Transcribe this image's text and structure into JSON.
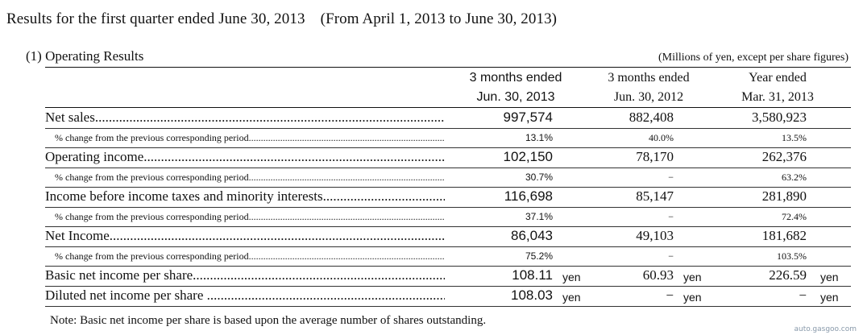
{
  "title": "Results for the first quarter ended June 30, 2013　(From April 1, 2013 to June 30, 2013)",
  "section_title": "(1)  Operating Results",
  "units_note": "(Millions of yen, except per share figures)",
  "columns": [
    {
      "line1": "3 months ended",
      "line2": "Jun. 30, 2013"
    },
    {
      "line1": "3 months ended",
      "line2": "Jun. 30, 2012"
    },
    {
      "line1": "Year ended",
      "line2": "Mar. 31, 2013"
    }
  ],
  "rows": [
    {
      "label": "Net sales",
      "kind": "main",
      "values": [
        "997,574",
        "882,408",
        "3,580,923"
      ],
      "units": [
        "",
        "",
        ""
      ]
    },
    {
      "label": "% change from the previous corresponding period",
      "kind": "sub",
      "values": [
        "13.1%",
        "40.0%",
        "13.5%"
      ],
      "units": [
        "",
        "",
        ""
      ]
    },
    {
      "label": "Operating income",
      "kind": "main",
      "values": [
        "102,150",
        "78,170",
        "262,376"
      ],
      "units": [
        "",
        "",
        ""
      ]
    },
    {
      "label": "% change from the previous corresponding period",
      "kind": "sub",
      "values": [
        "30.7%",
        "−",
        "63.2%"
      ],
      "units": [
        "",
        "",
        ""
      ]
    },
    {
      "label": "Income before income taxes and minority interests",
      "kind": "main",
      "values": [
        "116,698",
        "85,147",
        "281,890"
      ],
      "units": [
        "",
        "",
        ""
      ]
    },
    {
      "label": "% change from the previous corresponding period",
      "kind": "sub",
      "values": [
        "37.1%",
        "−",
        "72.4%"
      ],
      "units": [
        "",
        "",
        ""
      ]
    },
    {
      "label": "Net Income",
      "kind": "main",
      "values": [
        "86,043",
        "49,103",
        "181,682"
      ],
      "units": [
        "",
        "",
        ""
      ]
    },
    {
      "label": "% change from the previous corresponding period",
      "kind": "sub",
      "values": [
        "75.2%",
        "−",
        "103.5%"
      ],
      "units": [
        "",
        "",
        ""
      ]
    },
    {
      "label": "Basic net income per share",
      "kind": "main",
      "values": [
        "108.11",
        "60.93",
        "226.59"
      ],
      "units": [
        "yen",
        "yen",
        "yen"
      ]
    },
    {
      "label": "Diluted net income per share ",
      "kind": "main",
      "values": [
        "108.03",
        "−",
        "−"
      ],
      "units": [
        "yen",
        "yen",
        "yen"
      ]
    }
  ],
  "note": "Note: Basic net income per share is based upon the average number of shares outstanding.",
  "watermark": "auto.gasgoo.com"
}
